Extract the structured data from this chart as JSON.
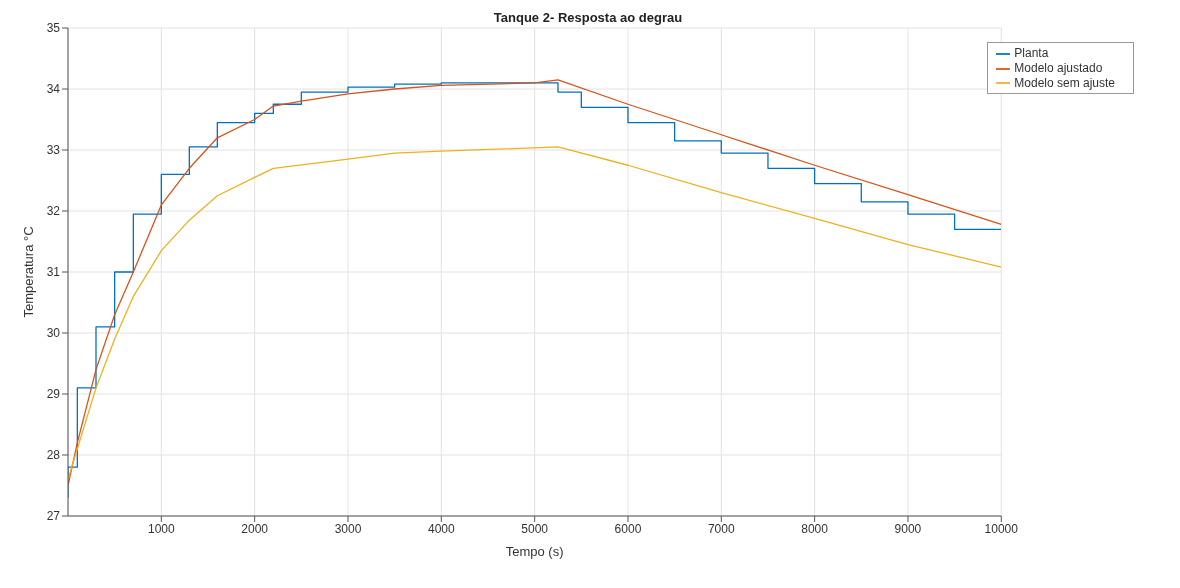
{
  "chart_data": {
    "type": "line",
    "title": "Tanque 2- Resposta ao degrau",
    "xlabel": "Tempo (s)",
    "ylabel": "Temperatura °C",
    "xlim": [
      0,
      10000
    ],
    "xticks": [
      1000,
      2000,
      3000,
      4000,
      5000,
      6000,
      7000,
      8000,
      9000,
      10000
    ],
    "ylim": [
      27,
      35
    ],
    "yticks": [
      27,
      28,
      29,
      30,
      31,
      32,
      33,
      34,
      35
    ],
    "grid": true,
    "legend": "top right",
    "marker": "none",
    "line_style": "solid",
    "series": [
      {
        "name": "Planta",
        "type": "step",
        "color": "#0072bd",
        "x": [
          0,
          100,
          300,
          500,
          700,
          1000,
          1300,
          1600,
          2000,
          2200,
          2500,
          3000,
          3500,
          4000,
          5000,
          5250,
          5500,
          6000,
          6500,
          7000,
          7500,
          8000,
          8500,
          9000,
          9500,
          10000
        ],
        "values": [
          27.3,
          27.8,
          29.1,
          30.1,
          31.0,
          31.95,
          32.6,
          33.05,
          33.45,
          33.6,
          33.75,
          33.95,
          34.03,
          34.08,
          34.1,
          34.1,
          33.95,
          33.7,
          33.45,
          33.15,
          32.95,
          32.7,
          32.45,
          32.15,
          31.95,
          31.7
        ]
      },
      {
        "name": "Modelo ajustado",
        "color": "#d95319",
        "x": [
          0,
          100,
          300,
          500,
          700,
          1000,
          1300,
          1600,
          2000,
          2200,
          2500,
          3000,
          3500,
          4000,
          5000,
          5250,
          6000,
          7000,
          8000,
          9000,
          10000
        ],
        "values": [
          27.5,
          28.2,
          29.4,
          30.3,
          31.0,
          32.1,
          32.7,
          33.2,
          33.5,
          33.72,
          33.8,
          33.92,
          34.0,
          34.06,
          34.1,
          34.15,
          33.75,
          33.25,
          32.75,
          32.27,
          31.78
        ]
      },
      {
        "name": "Modelo sem ajuste",
        "color": "#edb120",
        "x": [
          0,
          300,
          500,
          700,
          1000,
          1300,
          1600,
          2000,
          2200,
          3000,
          3500,
          4000,
          5250,
          6000,
          7000,
          8000,
          9000,
          10000
        ],
        "values": [
          27.6,
          29.1,
          29.9,
          30.6,
          31.35,
          31.85,
          32.25,
          32.55,
          32.7,
          32.85,
          32.95,
          32.98,
          33.05,
          32.75,
          32.3,
          31.88,
          31.45,
          31.08
        ]
      }
    ]
  }
}
